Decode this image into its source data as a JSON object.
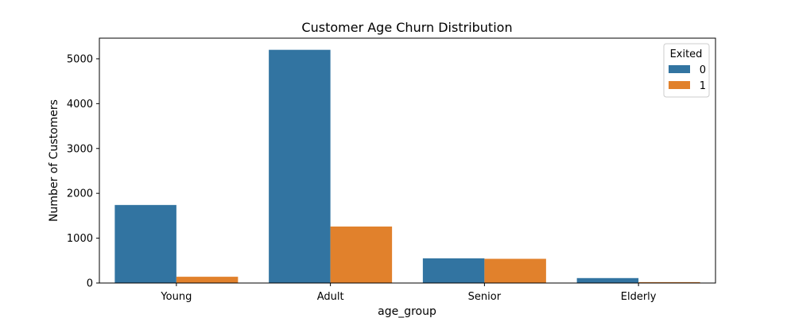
{
  "chart_data": {
    "type": "bar",
    "title": "Customer Age Churn Distribution",
    "xlabel": "age_group",
    "ylabel": "Number of Customers",
    "categories": [
      "Young",
      "Adult",
      "Senior",
      "Elderly"
    ],
    "series": [
      {
        "name": "0",
        "values": [
          1740,
          5200,
          550,
          110
        ],
        "color": "#3274a1"
      },
      {
        "name": "1",
        "values": [
          140,
          1260,
          540,
          20
        ],
        "color": "#e1812c"
      }
    ],
    "legend": {
      "title": "Exited",
      "position": "top-right"
    },
    "ylim": [
      0,
      5460
    ],
    "yticks": [
      0,
      1000,
      2000,
      3000,
      4000,
      5000
    ],
    "grid": false
  }
}
